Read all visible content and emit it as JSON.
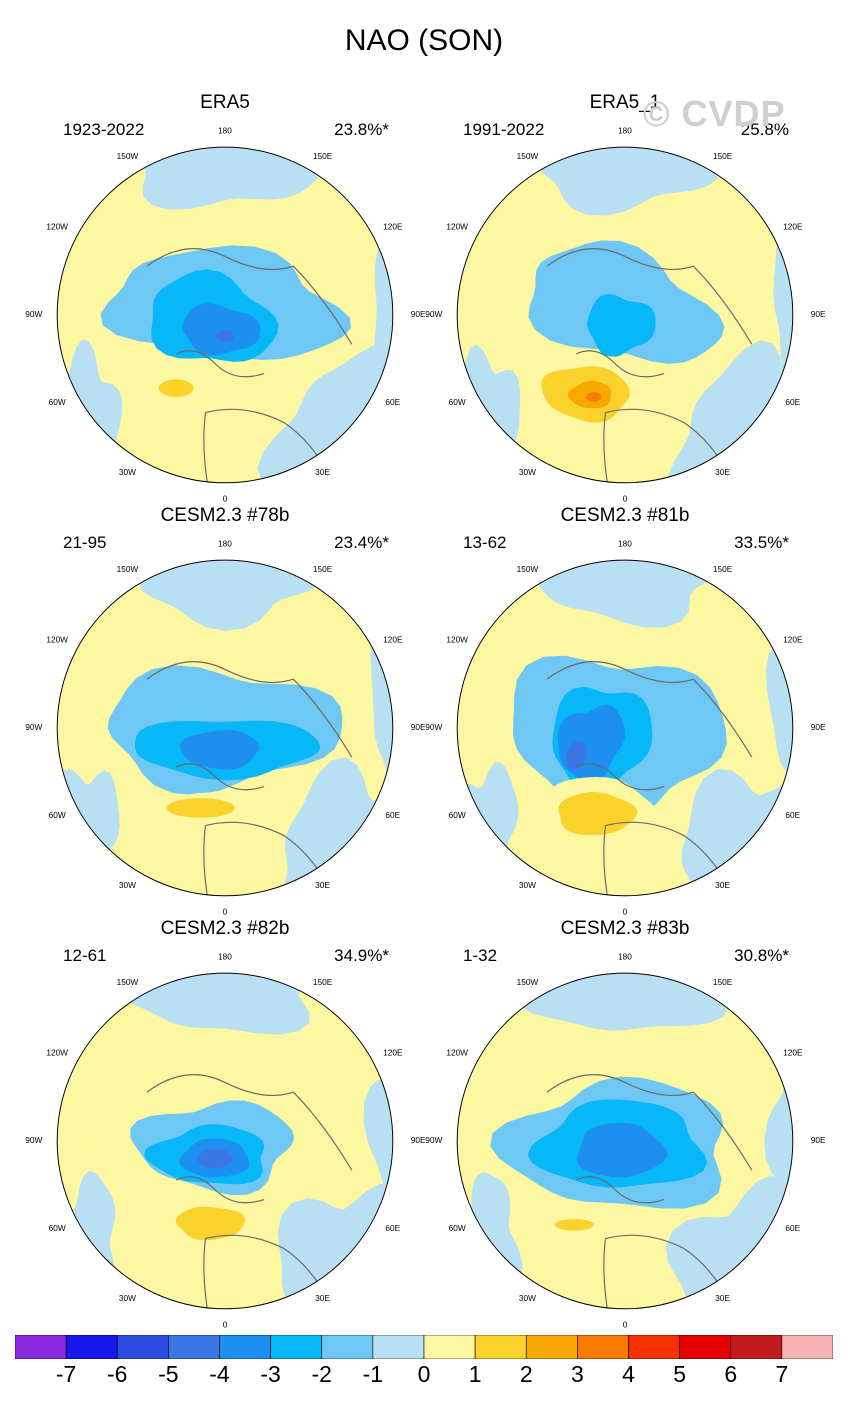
{
  "title": "NAO (SON)",
  "watermark": "© CVDP",
  "colors": {
    "levels": [
      "#8a2be2",
      "#1717ee",
      "#2c4de0",
      "#3a77e5",
      "#1c8ff0",
      "#07b7f7",
      "#6fc7f3",
      "#b9dff2",
      "#fdf7a1",
      "#f9d32c",
      "#f9a800",
      "#f97b00",
      "#f93000",
      "#e60000",
      "#c41c1c",
      "#f8b3b3"
    ],
    "ocean": "#b9dff2",
    "land": "#fdf7a1",
    "coast": "#6a6a6a"
  },
  "colorbar": {
    "labels": [
      "-7",
      "-6",
      "-5",
      "-4",
      "-3",
      "-2",
      "-1",
      "0",
      "1",
      "2",
      "3",
      "4",
      "5",
      "6",
      "7"
    ]
  },
  "longitude_labels": [
    "180",
    "150E",
    "120E",
    "90E",
    "60E",
    "30E",
    "0",
    "30W",
    "60W",
    "90W",
    "120W",
    "150W"
  ],
  "chart_data": [
    {
      "type": "heatmap",
      "title": "ERA5",
      "period": "1923-2022",
      "variance_explained": "23.8%*"
    },
    {
      "type": "heatmap",
      "title": "ERA5_1",
      "period": "1991-2022",
      "variance_explained": "25.8%"
    },
    {
      "type": "heatmap",
      "title": "CESM2.3 #78b",
      "period": "21-95",
      "variance_explained": "23.4%*"
    },
    {
      "type": "heatmap",
      "title": "CESM2.3 #81b",
      "period": "13-62",
      "variance_explained": "33.5%*"
    },
    {
      "type": "heatmap",
      "title": "CESM2.3 #82b",
      "period": "12-61",
      "variance_explained": "34.9%*"
    },
    {
      "type": "heatmap",
      "title": "CESM2.3 #83b",
      "period": "1-32",
      "variance_explained": "30.8%*"
    }
  ]
}
